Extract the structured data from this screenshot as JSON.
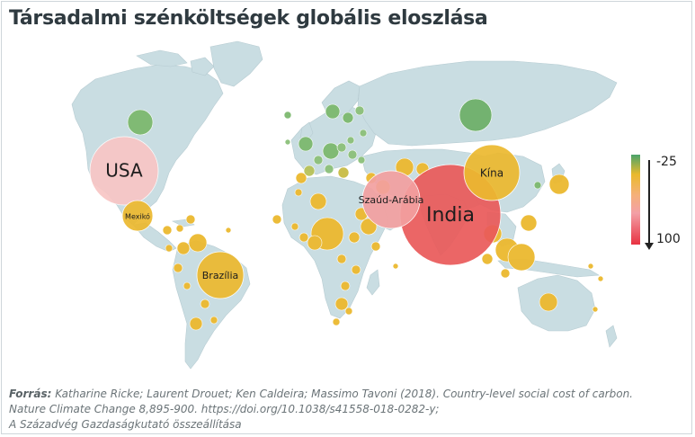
{
  "title": "Társadalmi szénköltségek globális eloszlása",
  "legend": {
    "top_label": "-25",
    "bottom_label": "100",
    "colors": [
      "#4aa36b",
      "#eab92c",
      "#f3a0a6",
      "#e83242"
    ]
  },
  "countries": [
    {
      "name": "USA",
      "label": "USA",
      "value": 48,
      "color": "#f8c6c5"
    },
    {
      "name": "India",
      "label": "India",
      "value": 86,
      "color": "#ea5a5a"
    },
    {
      "name": "Kína",
      "label": "Kína",
      "value": 24,
      "color": "#ecb92f"
    },
    {
      "name": "Szaúd-Arábia",
      "label": "Szaúd-Arábia",
      "value": 47,
      "color": "#f3a0a0"
    },
    {
      "name": "Brazília",
      "label": "Brazília",
      "value": 24,
      "color": "#ecb92f"
    },
    {
      "name": "Mexikó",
      "label": "Mexikó",
      "value": 12,
      "color": "#ecb92f"
    }
  ],
  "source": {
    "label": "Forrás:",
    "line1": "Katharine Ricke; Laurent Drouet; Ken Caldeira; Massimo Tavoni (2018). Country-level social cost of carbon.",
    "line2": "Nature Climate Change 8,895-900. https://doi.org/10.1038/s41558-018-0282-y;",
    "line3": "A Századvég Gazdaságkutató összeállítása"
  }
}
